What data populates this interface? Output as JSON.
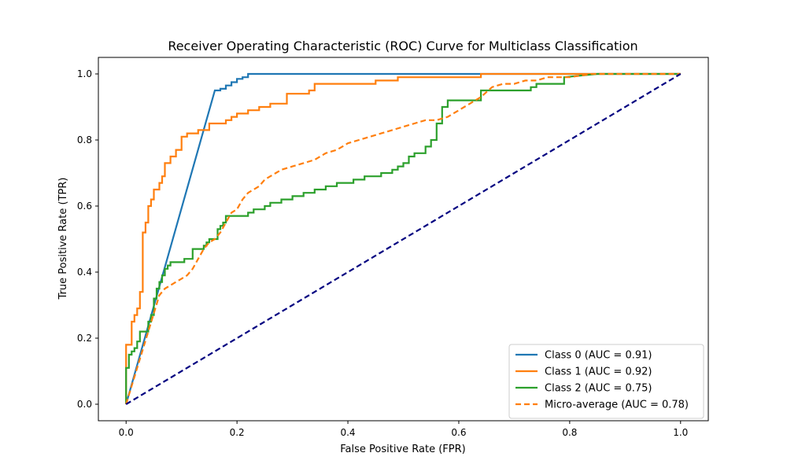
{
  "chart_data": {
    "type": "line",
    "title": "Receiver Operating Characteristic (ROC) Curve for Multiclass Classification",
    "xlabel": "False Positive Rate (FPR)",
    "ylabel": "True Positive Rate (TPR)",
    "xlim": [
      -0.05,
      1.05
    ],
    "ylim": [
      -0.05,
      1.05
    ],
    "xticks": [
      0.0,
      0.2,
      0.4,
      0.6,
      0.8,
      1.0
    ],
    "yticks": [
      0.0,
      0.2,
      0.4,
      0.6,
      0.8,
      1.0
    ],
    "xtick_labels": [
      "0.0",
      "0.2",
      "0.4",
      "0.6",
      "0.8",
      "1.0"
    ],
    "ytick_labels": [
      "0.0",
      "0.2",
      "0.4",
      "0.6",
      "0.8",
      "1.0"
    ],
    "grid": false,
    "legend_position": "bottom-right",
    "series": [
      {
        "name": "Class 0 (AUC = 0.91)",
        "color": "#1f77b4",
        "dash": "solid",
        "x": [
          0.0,
          0.16,
          0.17,
          0.17,
          0.18,
          0.18,
          0.19,
          0.19,
          0.2,
          0.2,
          0.21,
          0.21,
          0.22,
          0.22,
          0.63,
          0.63,
          1.0
        ],
        "y": [
          0.0,
          0.95,
          0.95,
          0.955,
          0.955,
          0.965,
          0.965,
          0.975,
          0.975,
          0.985,
          0.985,
          0.99,
          0.99,
          1.0,
          1.0,
          1.0,
          1.0
        ]
      },
      {
        "name": "Class 1 (AUC = 0.92)",
        "color": "#ff7f0e",
        "dash": "solid",
        "x": [
          0.0,
          0.0,
          0.01,
          0.01,
          0.015,
          0.015,
          0.02,
          0.02,
          0.025,
          0.025,
          0.03,
          0.03,
          0.035,
          0.035,
          0.04,
          0.04,
          0.045,
          0.045,
          0.05,
          0.05,
          0.06,
          0.06,
          0.065,
          0.065,
          0.07,
          0.07,
          0.08,
          0.08,
          0.09,
          0.09,
          0.1,
          0.1,
          0.11,
          0.11,
          0.13,
          0.13,
          0.15,
          0.15,
          0.18,
          0.18,
          0.19,
          0.19,
          0.2,
          0.2,
          0.22,
          0.22,
          0.24,
          0.24,
          0.26,
          0.26,
          0.29,
          0.29,
          0.33,
          0.33,
          0.34,
          0.34,
          0.45,
          0.45,
          0.49,
          0.49,
          0.64,
          0.64,
          0.84,
          0.84,
          1.0
        ],
        "y": [
          0.0,
          0.18,
          0.18,
          0.25,
          0.25,
          0.27,
          0.27,
          0.29,
          0.29,
          0.34,
          0.34,
          0.52,
          0.52,
          0.55,
          0.55,
          0.6,
          0.6,
          0.62,
          0.62,
          0.65,
          0.65,
          0.67,
          0.67,
          0.69,
          0.69,
          0.73,
          0.73,
          0.75,
          0.75,
          0.77,
          0.77,
          0.81,
          0.81,
          0.82,
          0.82,
          0.83,
          0.83,
          0.85,
          0.85,
          0.86,
          0.86,
          0.87,
          0.87,
          0.88,
          0.88,
          0.89,
          0.89,
          0.9,
          0.9,
          0.91,
          0.91,
          0.94,
          0.94,
          0.95,
          0.95,
          0.97,
          0.97,
          0.98,
          0.98,
          0.99,
          0.99,
          1.0,
          1.0,
          1.0,
          1.0
        ]
      },
      {
        "name": "Class 2 (AUC = 0.75)",
        "color": "#2ca02c",
        "dash": "solid",
        "x": [
          0.0,
          0.0,
          0.005,
          0.005,
          0.01,
          0.01,
          0.015,
          0.015,
          0.02,
          0.02,
          0.025,
          0.025,
          0.04,
          0.04,
          0.045,
          0.045,
          0.05,
          0.05,
          0.055,
          0.055,
          0.06,
          0.06,
          0.065,
          0.065,
          0.07,
          0.07,
          0.075,
          0.075,
          0.08,
          0.08,
          0.105,
          0.105,
          0.12,
          0.12,
          0.14,
          0.14,
          0.145,
          0.145,
          0.15,
          0.15,
          0.165,
          0.165,
          0.17,
          0.17,
          0.175,
          0.175,
          0.18,
          0.18,
          0.22,
          0.22,
          0.23,
          0.23,
          0.25,
          0.25,
          0.26,
          0.26,
          0.28,
          0.28,
          0.3,
          0.3,
          0.32,
          0.32,
          0.34,
          0.34,
          0.36,
          0.36,
          0.38,
          0.38,
          0.41,
          0.41,
          0.43,
          0.43,
          0.46,
          0.46,
          0.48,
          0.48,
          0.49,
          0.49,
          0.5,
          0.5,
          0.51,
          0.51,
          0.52,
          0.52,
          0.54,
          0.54,
          0.55,
          0.55,
          0.56,
          0.56,
          0.57,
          0.57,
          0.58,
          0.58,
          0.64,
          0.64,
          0.73,
          0.73,
          0.74,
          0.74,
          0.79,
          0.79,
          0.85,
          1.0
        ],
        "y": [
          0.0,
          0.11,
          0.11,
          0.15,
          0.15,
          0.16,
          0.16,
          0.17,
          0.17,
          0.19,
          0.19,
          0.22,
          0.22,
          0.25,
          0.25,
          0.27,
          0.27,
          0.32,
          0.32,
          0.35,
          0.35,
          0.37,
          0.37,
          0.39,
          0.39,
          0.41,
          0.41,
          0.42,
          0.42,
          0.43,
          0.43,
          0.44,
          0.44,
          0.47,
          0.47,
          0.48,
          0.48,
          0.49,
          0.49,
          0.5,
          0.5,
          0.53,
          0.53,
          0.54,
          0.54,
          0.55,
          0.55,
          0.57,
          0.57,
          0.58,
          0.58,
          0.59,
          0.59,
          0.6,
          0.6,
          0.61,
          0.61,
          0.62,
          0.62,
          0.63,
          0.63,
          0.64,
          0.64,
          0.65,
          0.65,
          0.66,
          0.66,
          0.67,
          0.67,
          0.68,
          0.68,
          0.69,
          0.69,
          0.7,
          0.7,
          0.71,
          0.71,
          0.72,
          0.72,
          0.73,
          0.73,
          0.75,
          0.75,
          0.76,
          0.76,
          0.78,
          0.78,
          0.8,
          0.8,
          0.85,
          0.85,
          0.9,
          0.9,
          0.92,
          0.92,
          0.95,
          0.95,
          0.96,
          0.96,
          0.97,
          0.97,
          0.99,
          1.0,
          1.0
        ]
      },
      {
        "name": "Micro-average (AUC = 0.78)",
        "color": "#ff7f0e",
        "dash": "dashed",
        "x": [
          0.0,
          0.06,
          0.07,
          0.08,
          0.09,
          0.1,
          0.11,
          0.12,
          0.13,
          0.14,
          0.15,
          0.16,
          0.17,
          0.18,
          0.19,
          0.2,
          0.21,
          0.22,
          0.23,
          0.24,
          0.25,
          0.26,
          0.27,
          0.28,
          0.3,
          0.32,
          0.34,
          0.36,
          0.38,
          0.4,
          0.42,
          0.44,
          0.46,
          0.48,
          0.5,
          0.52,
          0.54,
          0.56,
          0.58,
          0.6,
          0.62,
          0.64,
          0.66,
          0.68,
          0.7,
          0.72,
          0.74,
          0.76,
          0.78,
          0.8,
          0.82,
          0.84,
          0.86,
          1.0
        ],
        "y": [
          0.0,
          0.33,
          0.35,
          0.36,
          0.37,
          0.38,
          0.39,
          0.41,
          0.44,
          0.47,
          0.49,
          0.5,
          0.52,
          0.55,
          0.58,
          0.59,
          0.62,
          0.64,
          0.65,
          0.66,
          0.68,
          0.69,
          0.7,
          0.71,
          0.72,
          0.73,
          0.74,
          0.76,
          0.77,
          0.79,
          0.8,
          0.81,
          0.82,
          0.83,
          0.84,
          0.85,
          0.86,
          0.86,
          0.87,
          0.89,
          0.91,
          0.93,
          0.96,
          0.97,
          0.97,
          0.98,
          0.98,
          0.99,
          0.99,
          0.99,
          0.995,
          1.0,
          1.0,
          1.0
        ]
      },
      {
        "name": "",
        "color": "#000080",
        "dash": "dashed",
        "x": [
          0.0,
          1.0
        ],
        "y": [
          0.0,
          1.0
        ]
      }
    ]
  }
}
